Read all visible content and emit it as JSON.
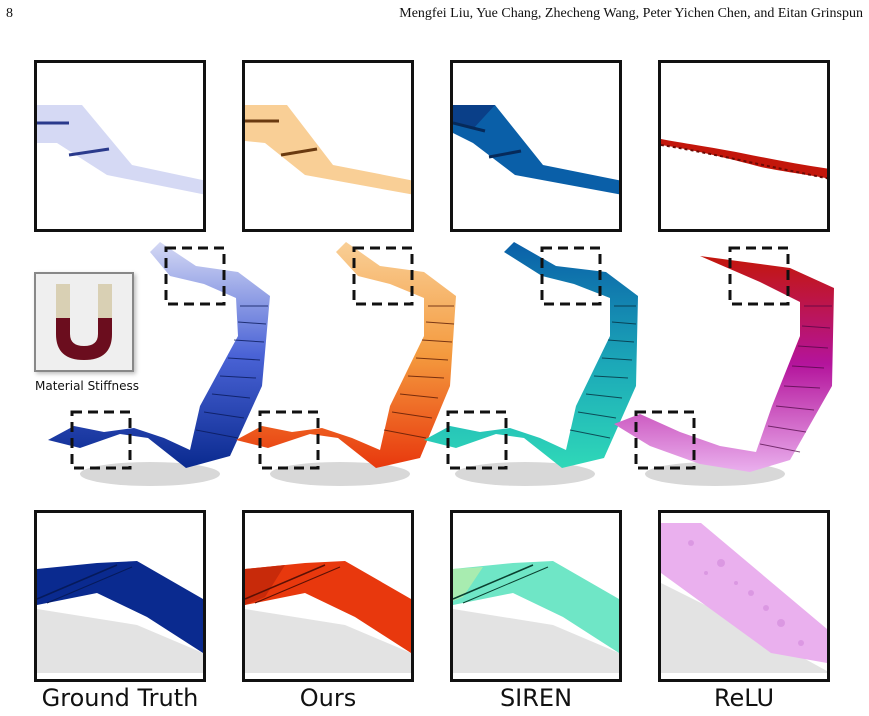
{
  "header": {
    "page_number": "8",
    "authors": "Mengfei Liu, Yue Chang, Zhecheng Wang, Peter Yichen Chen, and Eitan Grinspun"
  },
  "figure": {
    "legend_label": "Material Stiffness",
    "legend_colors": {
      "soft": "#d9d0b4",
      "stiff": "#6b0d1e"
    },
    "columns": [
      {
        "label": "Ground Truth",
        "color_main": "#0a2a8f",
        "color_light": "#d5d9f4",
        "color_mid": "#4a63d6"
      },
      {
        "label": "Ours",
        "color_main": "#e8380d",
        "color_light": "#f9cf96",
        "color_mid": "#f49a3e"
      },
      {
        "label": "SIREN",
        "color_main": "#0a5fa8",
        "color_light": "#6fe6c6",
        "color_mid": "#1ca9b8"
      },
      {
        "label": "ReLU",
        "color_main": "#c3160b",
        "color_light": "#eab0ee",
        "color_mid": "#b4149c"
      }
    ]
  }
}
